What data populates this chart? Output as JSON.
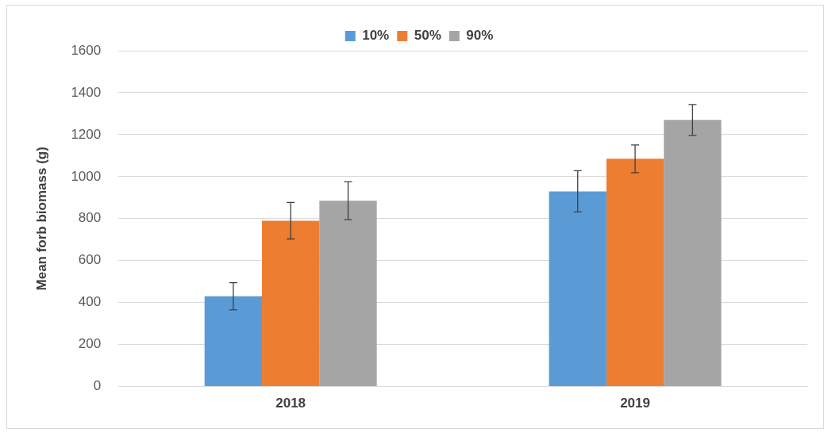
{
  "chart_data": {
    "type": "bar",
    "ylabel": "Mean forb biomass (g)",
    "categories": [
      "2018",
      "2019"
    ],
    "series": [
      {
        "name": "10%",
        "color": "#5b9bd5",
        "values": [
          430,
          930
        ],
        "errors": [
          65,
          98
        ]
      },
      {
        "name": "50%",
        "color": "#ed7d31",
        "values": [
          790,
          1085
        ],
        "errors": [
          87,
          66
        ]
      },
      {
        "name": "90%",
        "color": "#a5a5a5",
        "values": [
          885,
          1270
        ],
        "errors": [
          90,
          74
        ]
      }
    ],
    "ylim": [
      0,
      1600
    ],
    "yticks": [
      0,
      200,
      400,
      600,
      800,
      1000,
      1200,
      1400,
      1600
    ],
    "grid": "y",
    "legend": "top"
  }
}
